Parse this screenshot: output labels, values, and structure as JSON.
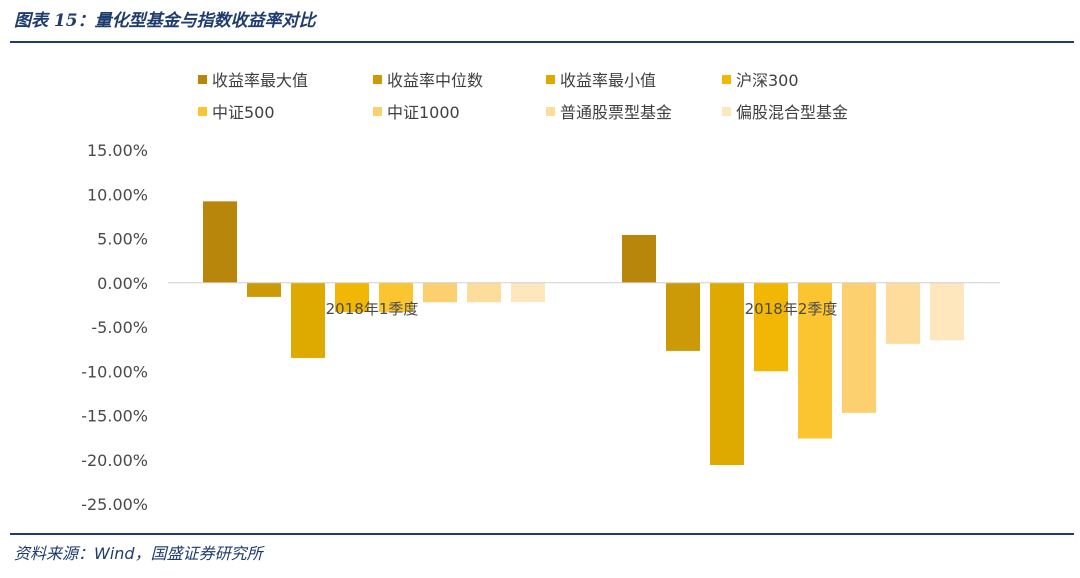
{
  "figure": {
    "title": "图表 15：量化型基金与指数收益率对比",
    "source": "资料来源：Wind，国盛证券研究所"
  },
  "chart_data": {
    "type": "bar",
    "categories": [
      "2018年1季度",
      "2018年2季度"
    ],
    "series": [
      {
        "name": "收益率最大值",
        "color": "#b8860b",
        "values": [
          9.2,
          5.4
        ]
      },
      {
        "name": "收益率中位数",
        "color": "#cc9a06",
        "values": [
          -1.6,
          -7.7
        ]
      },
      {
        "name": "收益率最小值",
        "color": "#dfaa00",
        "values": [
          -8.5,
          -20.6
        ]
      },
      {
        "name": "沪深300",
        "color": "#f2b705",
        "values": [
          -3.3,
          -10.0
        ]
      },
      {
        "name": "中证500",
        "color": "#fbc531",
        "values": [
          -3.3,
          -17.6
        ]
      },
      {
        "name": "中证1000",
        "color": "#fcd06e",
        "values": [
          -2.2,
          -14.7
        ]
      },
      {
        "name": "普通股票型基金",
        "color": "#fddc9c",
        "values": [
          -2.2,
          -6.9
        ]
      },
      {
        "name": "偏股混合型基金",
        "color": "#fee6bd",
        "values": [
          -2.2,
          -6.5
        ]
      }
    ],
    "ylim": [
      -25,
      15
    ],
    "y_ticks": [
      15,
      10,
      5,
      0,
      -5,
      -10,
      -15,
      -20,
      -25
    ],
    "y_tick_labels": [
      "15.00%",
      "10.00%",
      "5.00%",
      "0.00%",
      "-5.00%",
      "-10.00%",
      "-15.00%",
      "-20.00%",
      "-25.00%"
    ],
    "unit": "%",
    "legend_position": "top",
    "grid": false
  }
}
